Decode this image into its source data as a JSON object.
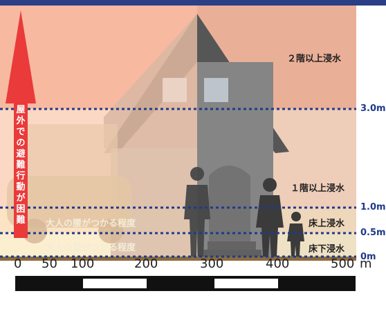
{
  "colors": {
    "zone_above_2f": "#f7b9a0",
    "zone_1f": "#fbd8c3",
    "zone_floor_above": "#fbe3c4",
    "zone_below_floor": "#fcefcf",
    "ground": "#8b6b3f",
    "level_line": "#1f3a8a",
    "arrow": "#ea3a3a",
    "top_bar": "#2a3f86"
  },
  "zones": {
    "above_second_floor": "２階以上浸水",
    "above_first_floor": "１階以上浸水",
    "above_floor": "床上浸水",
    "below_floor": "床下浸水"
  },
  "levels": {
    "l3": "3.0m",
    "l1": "1.0m",
    "l05": "0.5m",
    "l0": "0m"
  },
  "depth_labels": {
    "waist": "大人の腰がつかる程度",
    "knee": "大人の膝がつかる程度"
  },
  "arrow_text": "屋外での避難行動が困難",
  "scale": {
    "ticks": [
      "0",
      "50",
      "100",
      "200",
      "300",
      "400",
      "500"
    ],
    "unit": "m"
  }
}
